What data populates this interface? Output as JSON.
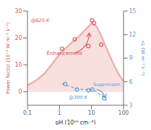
{
  "chart_data": {
    "type": "line",
    "xlabel": "pH (10¹⁹ cm⁻³)",
    "ylabel": "Power factor (10⁻⁴ W m⁻¹ k⁻²)",
    "y2label": "κL (W m⁻¹ k⁻¹)",
    "log": "x",
    "xlim": [
      0.1,
      100
    ],
    "xticks": [
      0.1,
      1,
      10,
      100
    ],
    "ylim": [
      -5,
      30
    ],
    "yticks": [
      0,
      10,
      20,
      30
    ],
    "y2lim": [
      3,
      15
    ],
    "y2ticks": [
      3,
      6,
      9,
      12,
      15
    ],
    "grid": false,
    "annotations": [
      {
        "text": "@625 K",
        "color": "#d9534f"
      },
      {
        "text": "Enhancement",
        "color": "#d9534f"
      },
      {
        "text": "@300 K",
        "color": "#5b9bd5"
      },
      {
        "text": "Suppression",
        "color": "#5b9bd5"
      }
    ],
    "series": [
      {
        "type": "area",
        "color": "#d9534f",
        "x": [
          0.1,
          0.15,
          0.2,
          0.35,
          0.6,
          1.0,
          2.0,
          4.0,
          7.0,
          10.0,
          14.0,
          20.0,
          30.0,
          50.0,
          80.0,
          100.0
        ],
        "values": [
          2.5,
          3.5,
          4.5,
          7.0,
          10.5,
          14.0,
          17.5,
          20.5,
          23.5,
          25.5,
          24.5,
          21.0,
          16.0,
          10.0,
          5.5,
          4.0
        ]
      },
      {
        "type": "line",
        "color": "#5b9bd5",
        "line_style": "dashed",
        "axis": "y2",
        "x": [
          1.2,
          3.5,
          8.0,
          11.0,
          30.0
        ],
        "values": [
          5.75,
          5.1,
          4.95,
          5.05,
          3.65
        ]
      },
      {
        "type": "scatter",
        "color": "#d9534f",
        "marker": "circle",
        "x": [
          1.2,
          3.0,
          8.0,
          10.5,
          12.0,
          20.0
        ],
        "values": [
          16.0,
          19.5,
          17.0,
          26.5,
          25.5,
          17.5
        ]
      },
      {
        "type": "scatter",
        "color": "#5b9bd5",
        "marker": "circle",
        "axis": "y2",
        "x": [
          1.5,
          3.5,
          8.0,
          10.5,
          25.0
        ],
        "values": [
          5.7,
          5.0,
          4.9,
          5.0,
          3.9
        ]
      }
    ]
  }
}
